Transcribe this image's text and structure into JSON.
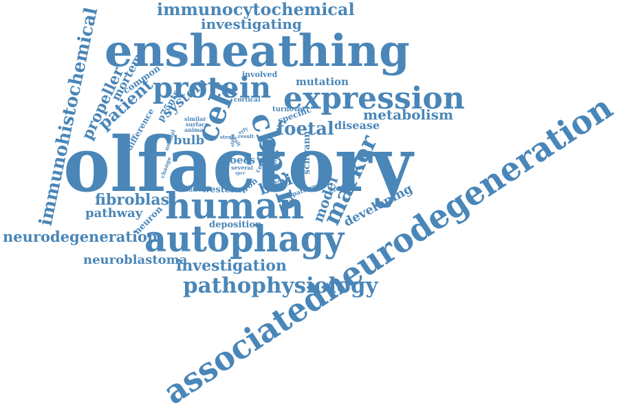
{
  "color": "#4a86b8",
  "words": [
    "immunocytochemical",
    "investigating",
    "ensheathing",
    "immunohistochemical",
    "propeller",
    "mortem",
    "common",
    "involved",
    "mutation",
    "protein",
    "expression",
    "cell",
    "cbpan",
    "patient",
    "p75ntr",
    "system",
    "cortical",
    "turnover",
    "specific",
    "metabolism",
    "difference",
    "similar",
    "surface",
    "animal",
    "foetal",
    "disease",
    "normal",
    "bulb",
    "adult",
    "syfy",
    "result",
    "stem",
    "olfactory",
    "schwann",
    "there",
    "cellular",
    "related",
    "oecs",
    "several",
    "spcr",
    "change",
    "alpha",
    "associatedneurodegeneration",
    "brain",
    "pattern",
    "extend",
    "control",
    "western",
    "iron",
    "marker",
    "fibroblast",
    "human",
    "model",
    "developing",
    "pathway",
    "neuron",
    "deposition",
    "neurodegeneration",
    "autophagy",
    "neuroblastoma",
    "investigation",
    "pathophysiology"
  ]
}
